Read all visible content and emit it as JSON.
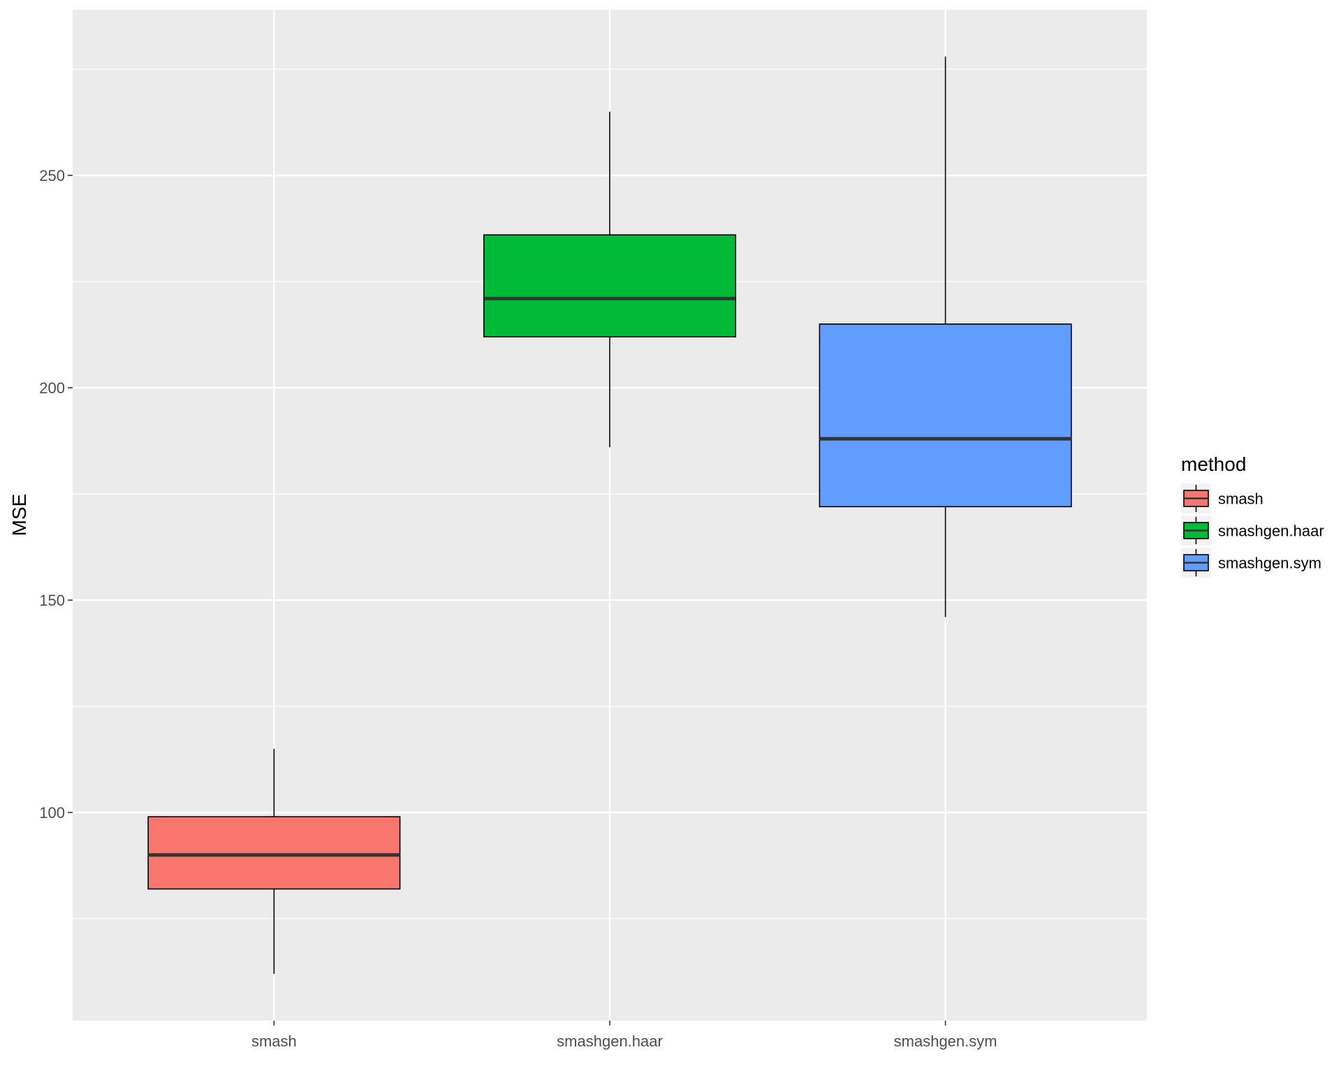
{
  "chart_data": {
    "type": "boxplot",
    "title": "",
    "xlabel": "",
    "ylabel": "MSE",
    "ylim": [
      51,
      289
    ],
    "yticks": [
      100,
      150,
      200,
      250
    ],
    "categories": [
      "smash",
      "smashgen.haar",
      "smashgen.sym"
    ],
    "series": [
      {
        "category": "smash",
        "color": "#F8766D",
        "whisker_low": 62,
        "q1": 82,
        "median": 90,
        "q3": 99,
        "whisker_high": 115
      },
      {
        "category": "smashgen.haar",
        "color": "#00BA38",
        "whisker_low": 186,
        "q1": 212,
        "median": 221,
        "q3": 236,
        "whisker_high": 265
      },
      {
        "category": "smashgen.sym",
        "color": "#619CFF",
        "whisker_low": 146,
        "q1": 172,
        "median": 188,
        "q3": 215,
        "whisker_high": 278
      }
    ],
    "legend": {
      "title": "method",
      "position": "right",
      "items": [
        "smash",
        "smashgen.haar",
        "smashgen.sym"
      ]
    },
    "grid": true,
    "panel_background": "#EBEBEB",
    "grid_color": "#FFFFFF"
  }
}
